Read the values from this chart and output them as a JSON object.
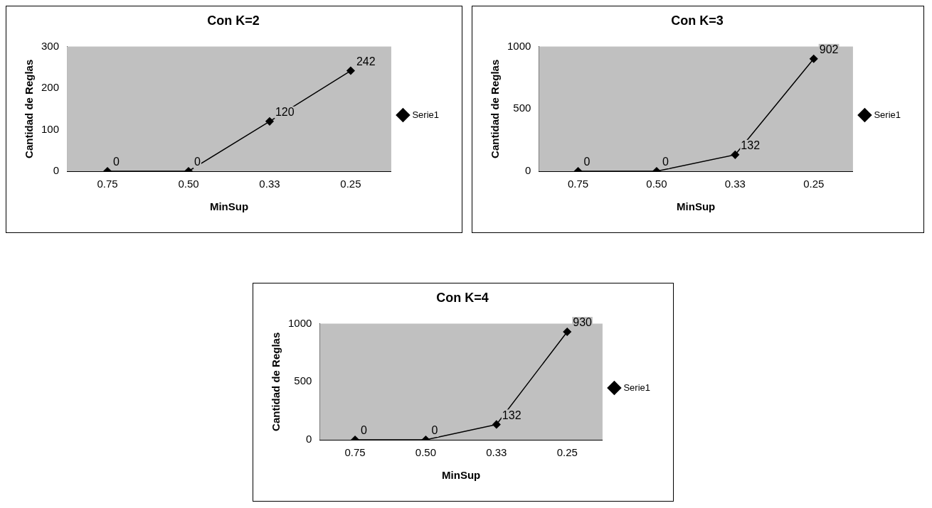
{
  "chart_data": [
    {
      "type": "line",
      "title": "Con K=2",
      "xlabel": "MinSup",
      "ylabel": "Cantidad de Reglas",
      "categories": [
        "0.75",
        "0.50",
        "0.33",
        "0.25"
      ],
      "series": [
        {
          "name": "Serie1",
          "color": "#000000",
          "values": [
            0,
            0,
            120,
            242
          ]
        }
      ],
      "ylim": [
        0,
        300
      ],
      "yticks": [
        0,
        100,
        200,
        300
      ],
      "grid": false,
      "legend": "right",
      "marker": "diamond",
      "data_labels": true
    },
    {
      "type": "line",
      "title": "Con K=3",
      "xlabel": "MinSup",
      "ylabel": "Cantidad de Reglas",
      "categories": [
        "0.75",
        "0.50",
        "0.33",
        "0.25"
      ],
      "series": [
        {
          "name": "Serie1",
          "color": "#000000",
          "values": [
            0,
            0,
            132,
            902
          ]
        }
      ],
      "ylim": [
        0,
        1000
      ],
      "yticks": [
        0,
        500,
        1000
      ],
      "grid": false,
      "legend": "right",
      "marker": "diamond",
      "data_labels": true
    },
    {
      "type": "line",
      "title": "Con K=4",
      "xlabel": "MinSup",
      "ylabel": "Cantidad de Reglas",
      "categories": [
        "0.75",
        "0.50",
        "0.33",
        "0.25"
      ],
      "series": [
        {
          "name": "Serie1",
          "color": "#000000",
          "values": [
            0,
            0,
            132,
            930
          ]
        }
      ],
      "ylim": [
        0,
        1000
      ],
      "yticks": [
        0,
        500,
        1000
      ],
      "grid": false,
      "legend": "right",
      "marker": "diamond",
      "data_labels": true
    }
  ]
}
